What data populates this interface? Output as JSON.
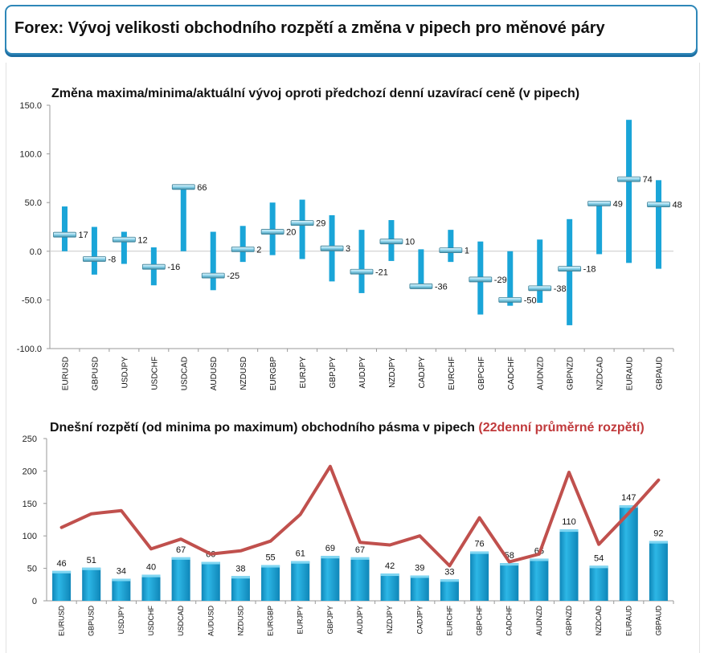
{
  "header": {
    "title": "Forex: Vývoj velikosti obchodního rozpětí a změna v pipech pro měnové páry"
  },
  "colors": {
    "bar": "#1aa5d8",
    "bar_dark": "#0f7fb0",
    "line": "#c0504d",
    "marker": "#8fd4ec"
  },
  "chart_data": [
    {
      "type": "candlestick",
      "title": "Změna maxima/minima/aktuální vývoj oproti předchozí denní uzavírací ceně (v pipech)",
      "ylim": [
        -100,
        150
      ],
      "yticks": [
        "150.0",
        "100.0",
        "50.0",
        "0.0",
        "-50.0",
        "-100.0"
      ],
      "ytick_values": [
        150,
        100,
        50,
        0,
        -50,
        -100
      ],
      "categories": [
        "EURUSD",
        "GBPUSD",
        "USDJPY",
        "USDCHF",
        "USDCAD",
        "AUDUSD",
        "NZDUSD",
        "EURGBP",
        "EURJPY",
        "GBPJPY",
        "AUDJPY",
        "NZDJPY",
        "CADJPY",
        "EURCHF",
        "GBPCHF",
        "CADCHF",
        "AUDNZD",
        "GBPNZD",
        "NZDCAD",
        "EURAUD",
        "GBPAUD"
      ],
      "high": [
        46,
        25,
        20,
        4,
        68,
        20,
        26,
        50,
        53,
        37,
        22,
        32,
        2,
        22,
        10,
        0,
        12,
        33,
        51,
        135,
        73
      ],
      "low": [
        0,
        -24,
        -13,
        -35,
        0,
        -40,
        -11,
        -4,
        -8,
        -31,
        -43,
        -10,
        -36,
        -11,
        -65,
        -56,
        -53,
        -76,
        -3,
        -12,
        -18
      ],
      "current": [
        17,
        -8,
        12,
        -16,
        66,
        -25,
        2,
        20,
        29,
        3,
        -21,
        10,
        -36,
        1,
        -29,
        -50,
        -38,
        -18,
        49,
        74,
        48
      ],
      "labels": [
        "17",
        "-8",
        "12",
        "-16",
        "66",
        "-25",
        "2",
        "20",
        "29",
        "3",
        "-21",
        "10",
        "-36",
        "1",
        "-29",
        "-50",
        "-38",
        "-18",
        "49",
        "74",
        "48"
      ]
    },
    {
      "type": "bar+line",
      "title": "Dnešní rozpětí (od minima po maximum) obchodního pásma v pipech",
      "subtitle": "(22denní průměrné rozpětí)",
      "ylim": [
        0,
        250
      ],
      "yticks": [
        "250",
        "200",
        "150",
        "100",
        "50",
        "0"
      ],
      "ytick_values": [
        250,
        200,
        150,
        100,
        50,
        0
      ],
      "categories": [
        "EURUSD",
        "GBPUSD",
        "USDJPY",
        "USDCHF",
        "USDCAD",
        "AUDUSD",
        "NZDUSD",
        "EURGBP",
        "EURJPY",
        "GBPJPY",
        "AUDJPY",
        "NZDJPY",
        "CADJPY",
        "EURCHF",
        "GBPCHF",
        "CADCHF",
        "AUDNZD",
        "GBPNZD",
        "NZDCAD",
        "EURAUD",
        "GBPAUD"
      ],
      "bar_values": [
        46,
        51,
        34,
        40,
        67,
        60,
        38,
        55,
        61,
        69,
        67,
        42,
        39,
        33,
        76,
        58,
        65,
        110,
        54,
        147,
        92
      ],
      "bar_labels": [
        "46",
        "51",
        "34",
        "40",
        "67",
        "60",
        "38",
        "55",
        "61",
        "69",
        "67",
        "42",
        "39",
        "33",
        "76",
        "58",
        "65",
        "110",
        "54",
        "147",
        "92"
      ],
      "line_values": [
        113,
        134,
        139,
        80,
        95,
        72,
        77,
        92,
        133,
        207,
        90,
        86,
        100,
        54,
        128,
        60,
        72,
        198,
        87,
        135,
        186
      ]
    }
  ]
}
